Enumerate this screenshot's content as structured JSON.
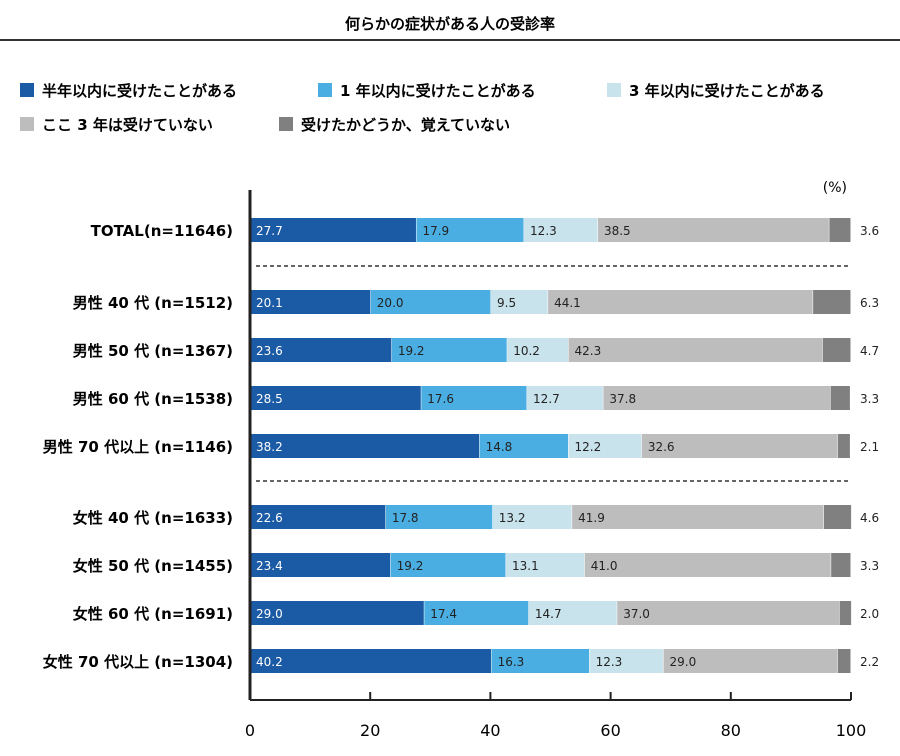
{
  "chart_data": {
    "type": "bar",
    "orientation": "horizontal",
    "stacked": true,
    "title": "何らかの症状がある人の受診率",
    "unit": "(%)",
    "categories": [
      "TOTAL(n=11646)",
      "男性 40 代 (n=1512)",
      "男性 50 代 (n=1367)",
      "男性 60 代 (n=1538)",
      "男性 70 代以上 (n=1146)",
      "女性 40 代 (n=1633)",
      "女性 50 代 (n=1455)",
      "女性 60 代 (n=1691)",
      "女性 70 代以上 (n=1304)"
    ],
    "series": [
      {
        "name": "半年以内に受けたことがある",
        "color": "#1b5aa4",
        "values": [
          27.7,
          20.1,
          23.6,
          28.5,
          38.2,
          22.6,
          23.4,
          29.0,
          40.2
        ]
      },
      {
        "name": "1 年以内に受けたことがある",
        "color": "#4aaee2",
        "values": [
          17.9,
          20.0,
          19.2,
          17.6,
          14.8,
          17.8,
          19.2,
          17.4,
          16.3
        ]
      },
      {
        "name": "3 年以内に受けたことがある",
        "color": "#c9e3ec",
        "values": [
          12.3,
          9.5,
          10.2,
          12.7,
          12.2,
          13.2,
          13.1,
          14.7,
          12.3
        ]
      },
      {
        "name": "ここ 3 年は受けていない",
        "color": "#bdbdbd",
        "values": [
          38.5,
          44.1,
          42.3,
          37.8,
          32.6,
          41.9,
          41.0,
          37.0,
          29.0
        ]
      },
      {
        "name": "受けたかどうか、覚えていない",
        "color": "#808080",
        "values": [
          3.6,
          6.3,
          4.7,
          3.3,
          2.1,
          4.6,
          3.3,
          2.0,
          2.2
        ]
      }
    ],
    "xlim": [
      0,
      100
    ],
    "xticks": [
      0,
      20,
      40,
      60,
      80,
      100
    ],
    "grid": false,
    "legend_position": "top"
  }
}
